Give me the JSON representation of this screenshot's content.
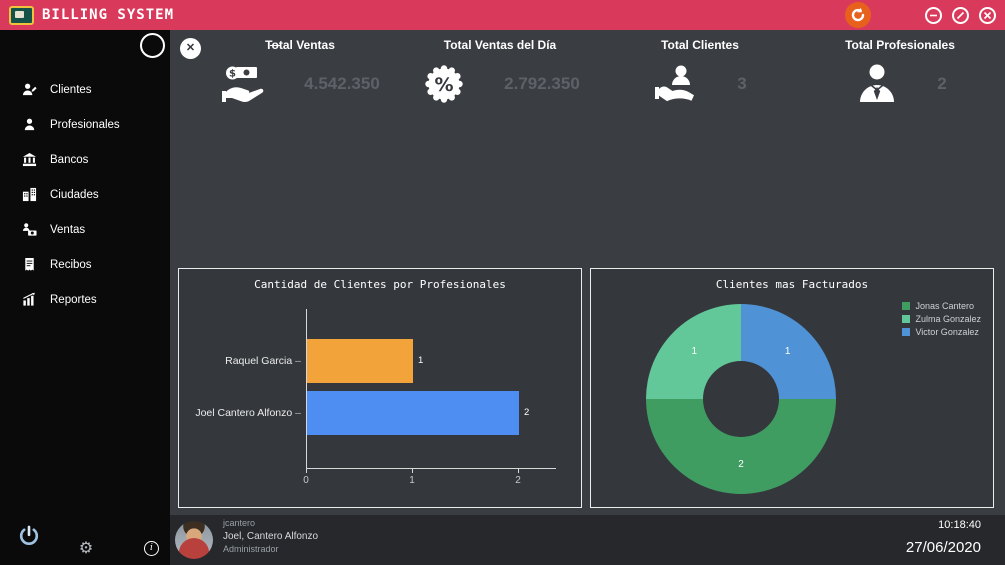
{
  "titlebar": {
    "app_title": "BILLING SYSTEM",
    "icons": {
      "logo": "app-logo-icon",
      "logout": "logout-arrow-icon",
      "minimize": "minimize-icon",
      "maximize": "maximize-icon",
      "close": "close-icon"
    }
  },
  "sidebar": {
    "items": [
      {
        "label": "Clientes",
        "icon": "clients-icon"
      },
      {
        "label": "Profesionales",
        "icon": "professionals-icon"
      },
      {
        "label": "Bancos",
        "icon": "bank-icon"
      },
      {
        "label": "Ciudades",
        "icon": "city-icon"
      },
      {
        "label": "Ventas",
        "icon": "sales-icon"
      },
      {
        "label": "Recibos",
        "icon": "receipt-icon"
      },
      {
        "label": "Reportes",
        "icon": "report-icon"
      }
    ],
    "bottom_icons": [
      "power-icon",
      "gear-icon",
      "info-icon"
    ]
  },
  "dashboard": {
    "stats": [
      {
        "label": "Total Ventas",
        "value": "4.542.350",
        "icon": "money-hand-icon"
      },
      {
        "label": "Total Ventas del Día",
        "value": "2.792.350",
        "icon": "percent-badge-icon"
      },
      {
        "label": "Total Clientes",
        "value": "3",
        "icon": "client-hand-icon"
      },
      {
        "label": "Total Profesionales",
        "value": "2",
        "icon": "professional-icon"
      }
    ]
  },
  "chart_data": [
    {
      "type": "bar",
      "orientation": "horizontal",
      "title": "Cantidad de Clientes por Profesionales",
      "categories": [
        "Raquel Garcia",
        "Joel Cantero Alfonzo"
      ],
      "values": [
        1,
        2
      ],
      "bar_colors": [
        "#f2a43a",
        "#4e8df2"
      ],
      "xlim": [
        0,
        2
      ],
      "x_ticks": [
        "0",
        "1",
        "2"
      ],
      "grid": false
    },
    {
      "type": "pie",
      "subtype": "donut",
      "title": "Clientes mas Facturados",
      "slices": [
        {
          "label": "Victor Gonzalez",
          "value": 1,
          "color": "#4f93d6"
        },
        {
          "label": "Jonas Cantero",
          "value": 2,
          "color": "#3f9d62"
        },
        {
          "label": "Zulma Gonzalez",
          "value": 1,
          "color": "#62c89a"
        }
      ],
      "legend": [
        {
          "name": "Jonas Cantero",
          "color": "#3f9d62"
        },
        {
          "name": "Zulma Gonzalez",
          "color": "#62c89a"
        },
        {
          "name": "Victor Gonzalez",
          "color": "#4f93d6"
        }
      ],
      "legend_position": "top-right",
      "start_angle_deg": 0,
      "direction": "clockwise"
    }
  ],
  "footer": {
    "username": "jcantero",
    "fullname": "Joel, Cantero Alfonzo",
    "role": "Administrador",
    "time": "10:18:40",
    "date": "27/06/2020"
  },
  "colors": {
    "titlebar": "#d93a5c",
    "sidebar": "#0a0a0a",
    "main_bg": "#3a3d42",
    "panel_bg": "#34373c",
    "footer_bg": "#26282c",
    "logout_orange": "#e8611c"
  }
}
